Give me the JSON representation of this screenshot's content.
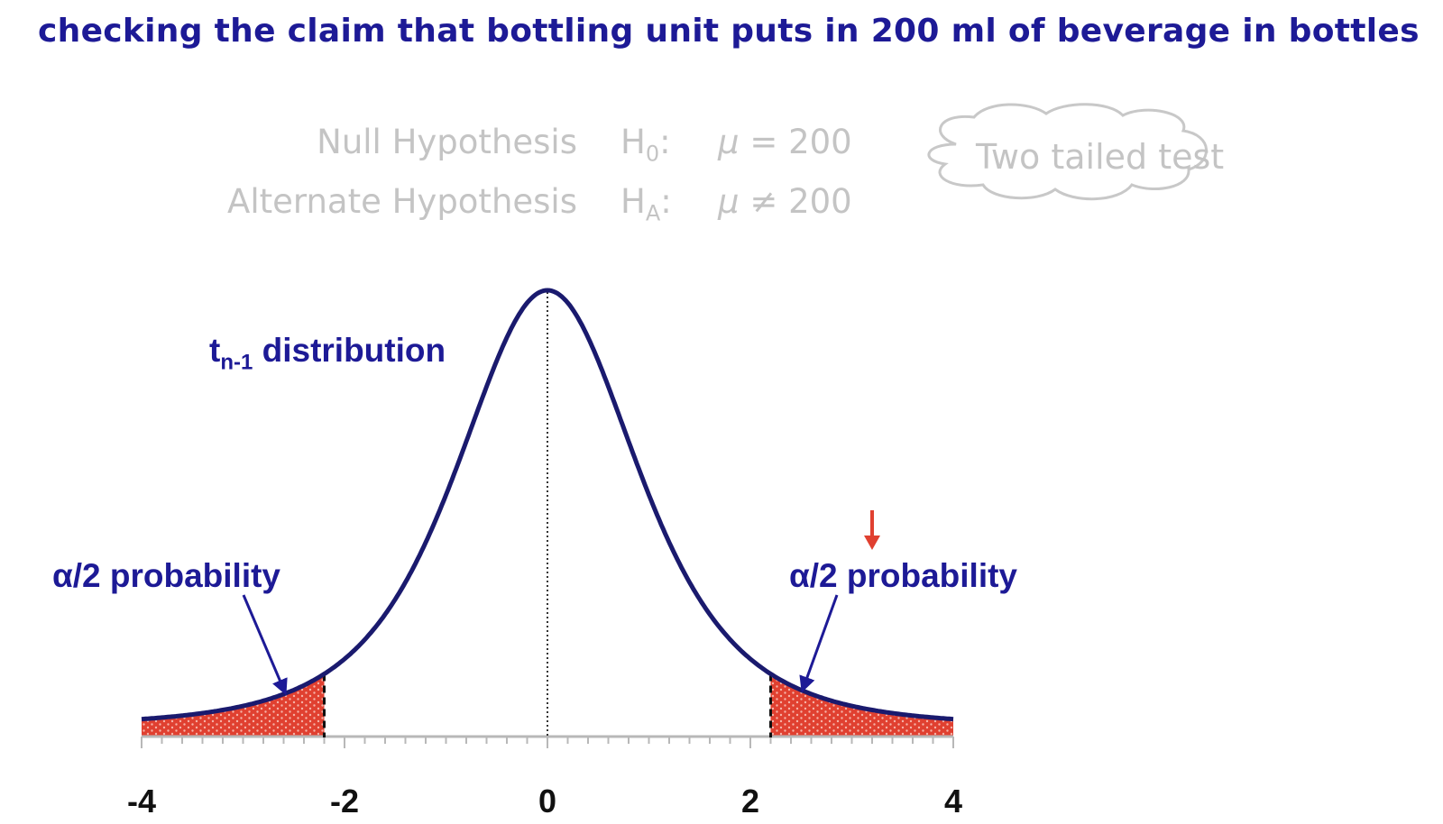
{
  "title": "checking the claim that bottling unit puts in 200 ml of beverage in bottles",
  "hypotheses": {
    "null_label": "Null Hypothesis",
    "null_symbol": "H",
    "null_subscript": "0",
    "null_colon": ":",
    "mu": "μ",
    "null_relation": "= 200",
    "alt_label": "Alternate Hypothesis",
    "alt_symbol": "H",
    "alt_subscript": "A",
    "alt_colon": ":",
    "alt_relation": "≠ 200"
  },
  "callout": "Two tailed test",
  "labels": {
    "dist_main": "t",
    "dist_sub": "n-1",
    "dist_rest": " distribution",
    "left_tail": "α/2 probability",
    "right_tail": "α/2 probability"
  },
  "chart_data": {
    "type": "area",
    "curve": "t distribution (bell curve)",
    "xlim": [
      -4,
      4
    ],
    "x_ticks": [
      "-4",
      "-2",
      "0",
      "2",
      "4"
    ],
    "critical_values": [
      -2.2,
      2.2
    ],
    "test_statistic_marker": 3.2,
    "center_line": 0,
    "colors": {
      "curve": "#1a1a6e",
      "tails": "#e04030",
      "text": "#1d1a96",
      "marker": "#e04030"
    }
  }
}
